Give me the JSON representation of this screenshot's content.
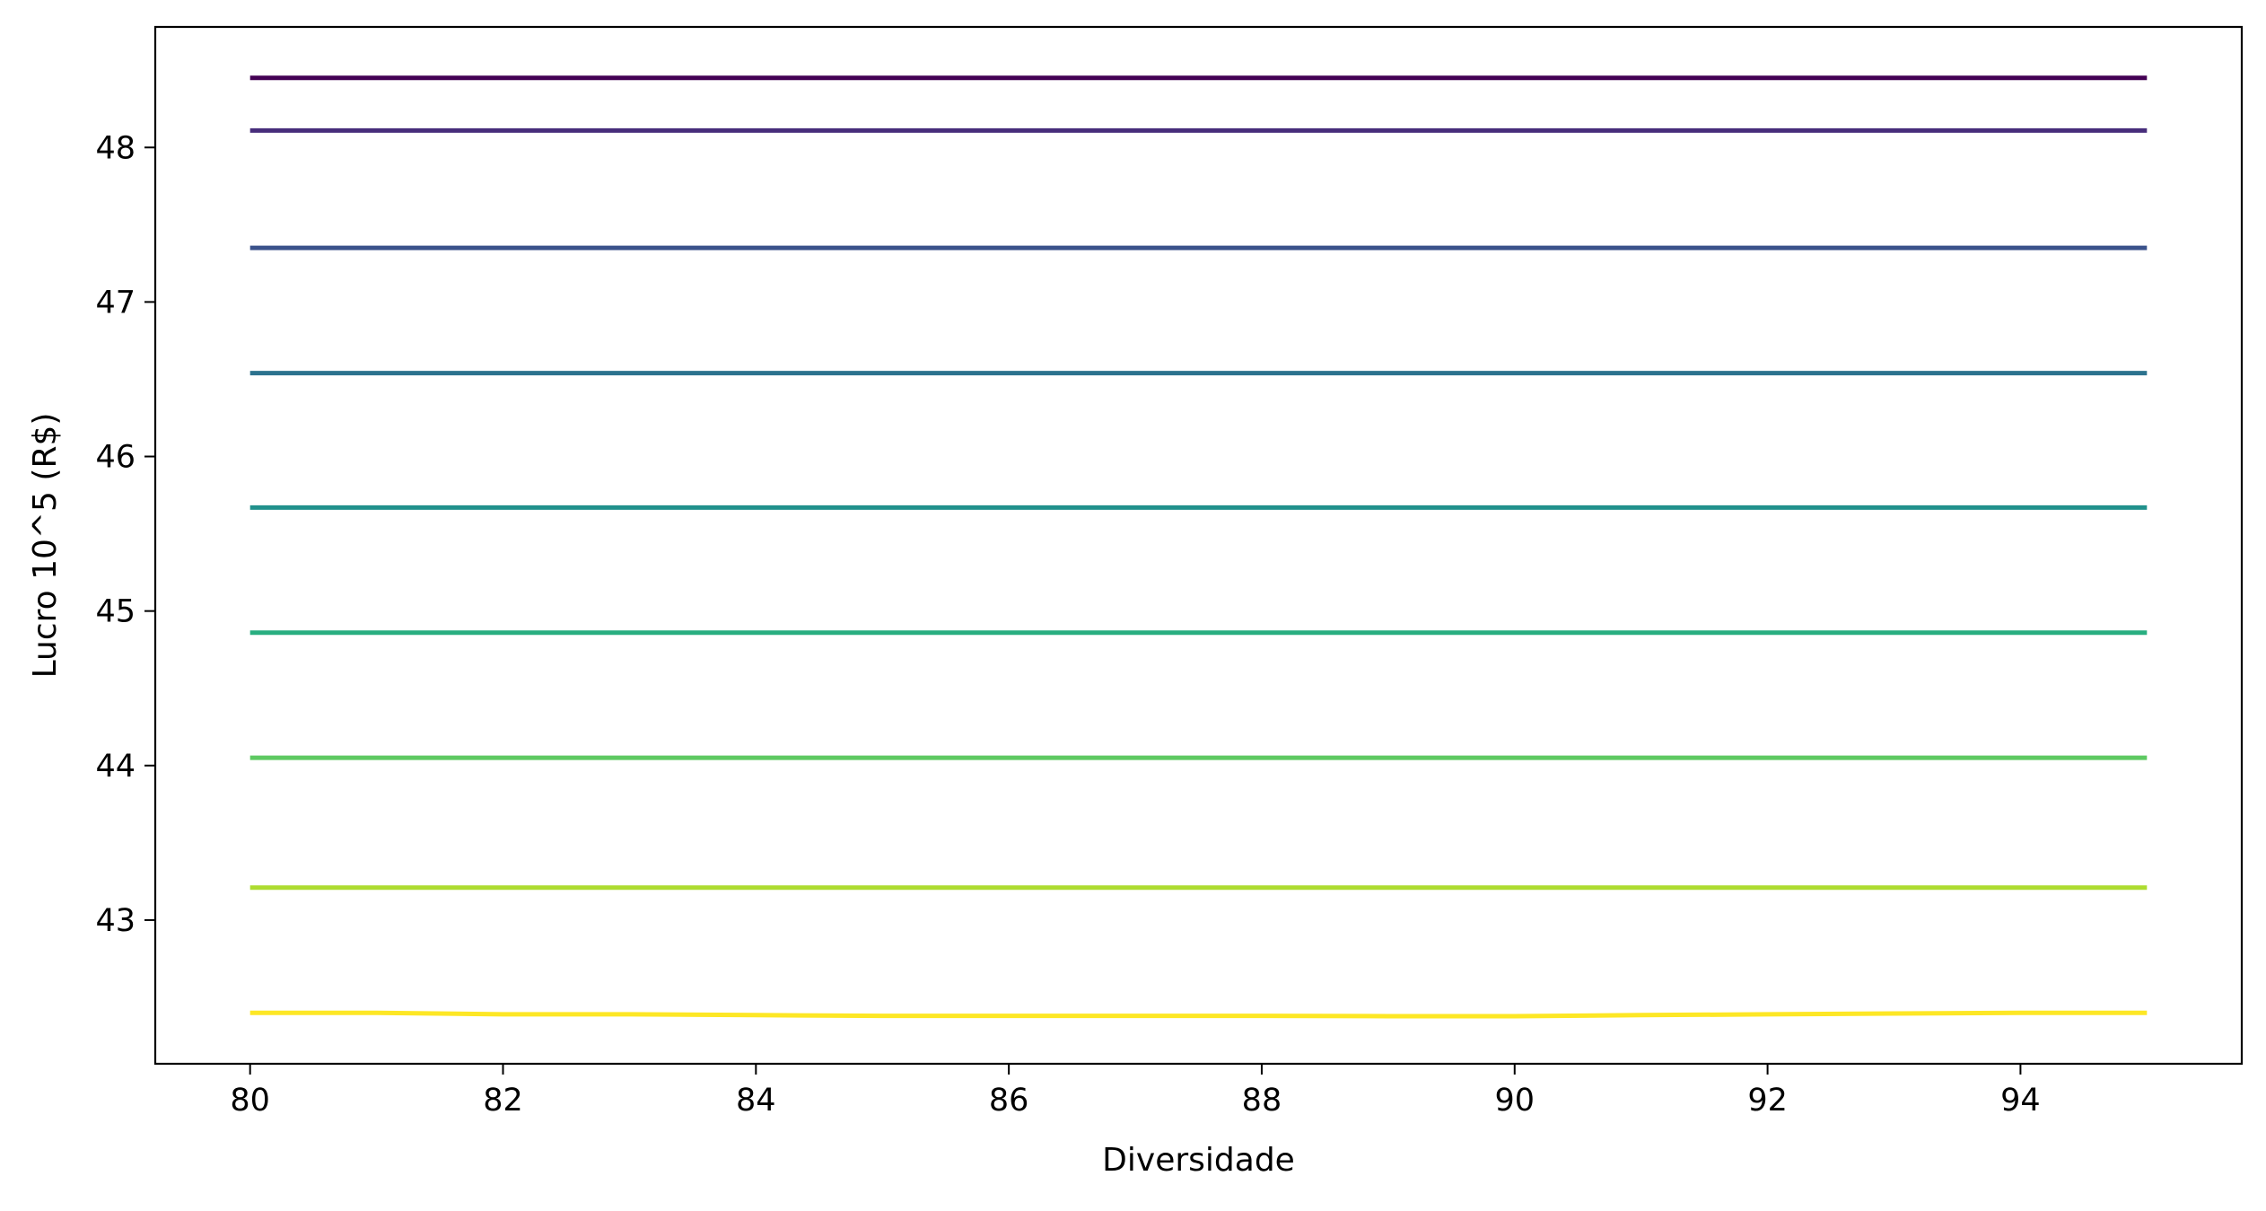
{
  "chart_data": {
    "type": "line",
    "title": "",
    "xlabel": "Diversidade",
    "ylabel": "Lucro 10^5 (R$)",
    "xlim": [
      79.25,
      95.75
    ],
    "ylim": [
      42.07,
      48.78
    ],
    "grid": false,
    "legend": "none",
    "xticks": [
      80,
      82,
      84,
      86,
      88,
      90,
      92,
      94
    ],
    "yticks": [
      43,
      44,
      45,
      46,
      47,
      48
    ],
    "x": [
      80,
      81,
      82,
      83,
      84,
      85,
      86,
      87,
      88,
      89,
      90,
      91,
      92,
      93,
      94,
      95
    ],
    "series": [
      {
        "color": "#440154",
        "values": [
          48.45,
          48.45,
          48.45,
          48.45,
          48.45,
          48.45,
          48.45,
          48.45,
          48.45,
          48.45,
          48.45,
          48.45,
          48.45,
          48.45,
          48.45,
          48.45
        ]
      },
      {
        "color": "#472d7b",
        "values": [
          48.11,
          48.11,
          48.11,
          48.11,
          48.11,
          48.11,
          48.11,
          48.11,
          48.11,
          48.11,
          48.11,
          48.11,
          48.11,
          48.11,
          48.11,
          48.11
        ]
      },
      {
        "color": "#3b528b",
        "values": [
          47.35,
          47.35,
          47.35,
          47.35,
          47.35,
          47.35,
          47.35,
          47.35,
          47.35,
          47.35,
          47.35,
          47.35,
          47.35,
          47.35,
          47.35,
          47.35
        ]
      },
      {
        "color": "#2c728e",
        "values": [
          46.54,
          46.54,
          46.54,
          46.54,
          46.54,
          46.54,
          46.54,
          46.54,
          46.54,
          46.54,
          46.54,
          46.54,
          46.54,
          46.54,
          46.54,
          46.54
        ]
      },
      {
        "color": "#21918c",
        "values": [
          45.67,
          45.67,
          45.67,
          45.67,
          45.67,
          45.67,
          45.67,
          45.67,
          45.67,
          45.67,
          45.67,
          45.67,
          45.67,
          45.67,
          45.67,
          45.67
        ]
      },
      {
        "color": "#28ae80",
        "values": [
          44.86,
          44.86,
          44.86,
          44.86,
          44.86,
          44.86,
          44.86,
          44.86,
          44.86,
          44.86,
          44.86,
          44.86,
          44.86,
          44.86,
          44.86,
          44.86
        ]
      },
      {
        "color": "#5ec962",
        "values": [
          44.05,
          44.05,
          44.05,
          44.05,
          44.05,
          44.05,
          44.05,
          44.05,
          44.05,
          44.05,
          44.05,
          44.05,
          44.05,
          44.05,
          44.05,
          44.05
        ]
      },
      {
        "color": "#addc30",
        "values": [
          43.21,
          43.21,
          43.21,
          43.21,
          43.21,
          43.21,
          43.21,
          43.21,
          43.21,
          43.21,
          43.21,
          43.21,
          43.21,
          43.21,
          43.21,
          43.21
        ]
      },
      {
        "color": "#fde725",
        "values": [
          42.4,
          42.4,
          42.39,
          42.39,
          42.385,
          42.38,
          42.38,
          42.38,
          42.38,
          42.378,
          42.378,
          42.385,
          42.39,
          42.395,
          42.4,
          42.4
        ]
      }
    ]
  }
}
